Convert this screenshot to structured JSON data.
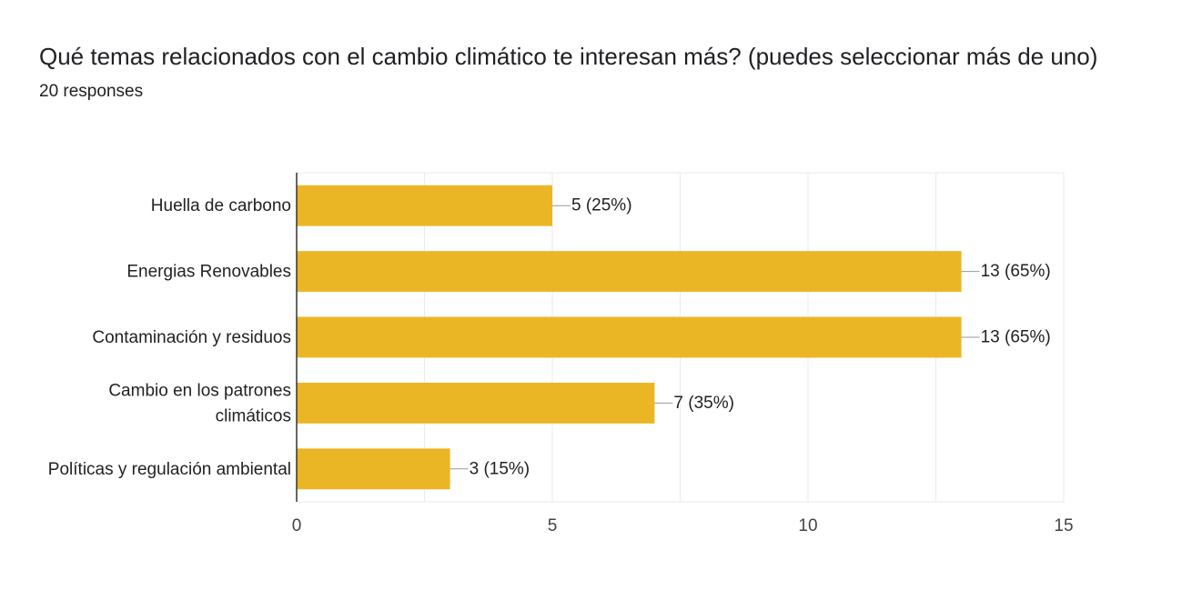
{
  "header": {
    "title": "Qué temas relacionados con el cambio climático te interesan más? (puedes seleccionar más de uno)",
    "responses": "20 responses"
  },
  "colors": {
    "bar": "#EBB626",
    "grid": "#EBEBEB",
    "axis": "#333333",
    "leader": "#999999"
  },
  "chart_data": {
    "type": "bar",
    "orientation": "horizontal",
    "categories": [
      [
        "Huella de carbono"
      ],
      [
        "Energias Renovables"
      ],
      [
        "Contaminación y residuos"
      ],
      [
        "Cambio en los patrones",
        "climáticos"
      ],
      [
        "Políticas y regulación ambiental"
      ]
    ],
    "values": [
      5,
      13,
      13,
      7,
      3
    ],
    "data_labels": [
      "5 (25%)",
      "13 (65%)",
      "13 (65%)",
      "7 (35%)",
      "3 (15%)"
    ],
    "xlim": [
      0,
      15
    ],
    "xticks": [
      0,
      5,
      10,
      15
    ],
    "grid": true,
    "xlabel": "",
    "ylabel": ""
  }
}
